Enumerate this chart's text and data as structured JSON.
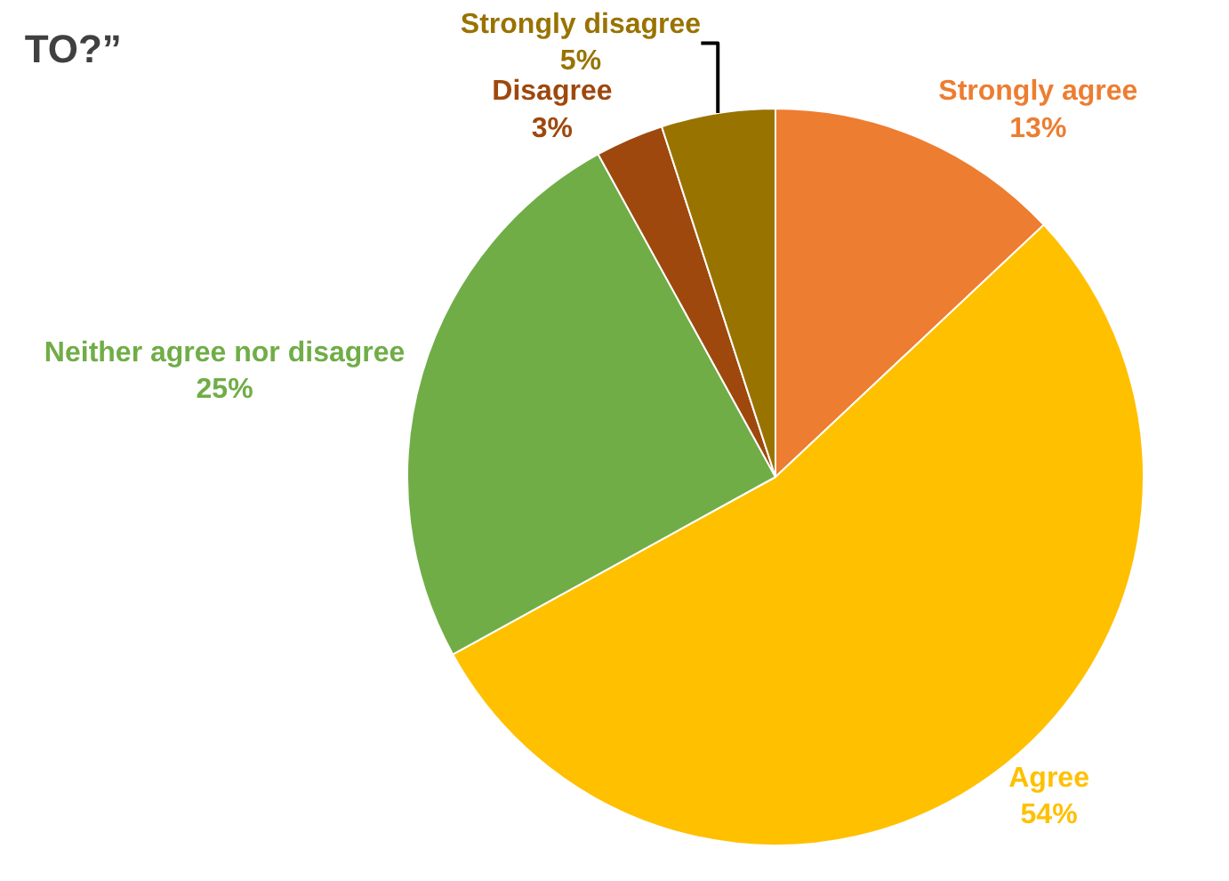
{
  "chart_data": {
    "type": "pie",
    "title": "TO?”",
    "categories": [
      "Strongly agree",
      "Agree",
      "Neither agree nor disagree",
      "Disagree",
      "Strongly disagree"
    ],
    "values": [
      13,
      54,
      25,
      3,
      5
    ],
    "value_labels": [
      "13%",
      "54%",
      "25%",
      "3%",
      "5%"
    ],
    "colors": [
      "#ed7d31",
      "#ffc000",
      "#70ad47",
      "#9e480e",
      "#997300"
    ],
    "legend": false
  }
}
